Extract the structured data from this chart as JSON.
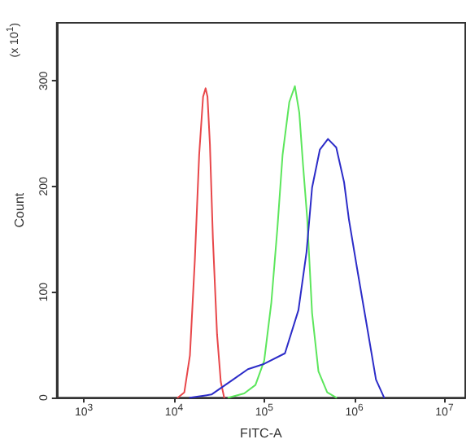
{
  "chart_data": {
    "type": "line",
    "xlabel": "FITC-A",
    "ylabel": "Count",
    "annotations": [
      "(x 10$^{1}$)"
    ],
    "log": "x",
    "xlim": [
      500,
      17000000
    ],
    "xticks": [
      {
        "value": 1000,
        "label": "10$^{3}$"
      },
      {
        "value": 10000,
        "label": "10$^{4}$"
      },
      {
        "value": 100000,
        "label": "10$^{5}$"
      },
      {
        "value": 1000000,
        "label": "10$^{6}$"
      },
      {
        "value": 10000000,
        "label": "10$^{7}$"
      }
    ],
    "ylim": [
      0,
      355
    ],
    "yticks": [
      0,
      100,
      200,
      300
    ],
    "marker": "none",
    "line_style": "solid",
    "series": [
      {
        "color": "#e8474a",
        "x": [
          11000,
          13000,
          15000,
          17000,
          19000,
          21000,
          22400,
          23500,
          25000,
          27000,
          30000,
          33000,
          36000
        ],
        "values": [
          0,
          5,
          40,
          130,
          230,
          285,
          293,
          285,
          240,
          150,
          60,
          15,
          0
        ]
      },
      {
        "color": "#5ce65c",
        "x": [
          40000,
          60000,
          80000,
          100000,
          120000,
          140000,
          160000,
          190000,
          219000,
          245000,
          270000,
          300000,
          340000,
          400000,
          500000,
          630000
        ],
        "values": [
          0,
          4,
          12,
          35,
          90,
          160,
          230,
          280,
          295,
          270,
          220,
          170,
          80,
          25,
          5,
          0
        ]
      },
      {
        "color": "#2c2cc8",
        "x": [
          15000,
          26000,
          45000,
          66000,
          100000,
          170000,
          240000,
          295000,
          340000,
          415000,
          510000,
          630000,
          770000,
          870000,
          1070000,
          1410000,
          1740000,
          2140000
        ],
        "values": [
          0,
          3,
          17,
          27,
          32,
          42,
          83,
          138,
          199,
          235,
          245,
          237,
          204,
          169,
          123,
          63,
          17,
          0
        ]
      }
    ]
  }
}
